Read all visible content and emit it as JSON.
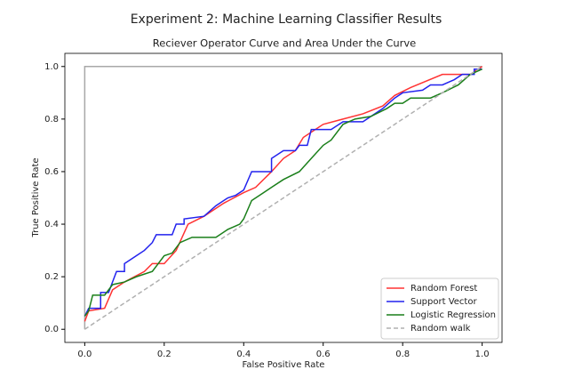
{
  "chart_data": {
    "type": "line",
    "suptitle": "Experiment 2: Machine Learning Classifier Results",
    "title": "Reciever Operator Curve and Area Under the Curve",
    "x_label": "False Positive Rate",
    "y_label": "True Positive Rate",
    "xlim": [
      -0.05,
      1.05
    ],
    "ylim": [
      -0.05,
      1.05
    ],
    "xticks": [
      {
        "value": 0,
        "label": "0.0"
      },
      0.2,
      0.4,
      0.6,
      0.8,
      {
        "value": 1,
        "label": "1.0"
      }
    ],
    "yticks": [
      {
        "value": 0,
        "label": "0.0"
      },
      0.2,
      0.4,
      0.6,
      0.8,
      {
        "value": 1,
        "label": "1.0"
      }
    ],
    "grid": false,
    "legend": "lower right",
    "series": [
      {
        "color": "#a8a8a8",
        "x": [
          0,
          0,
          1
        ],
        "values": [
          0,
          1,
          1
        ]
      },
      {
        "name": "Random Forest",
        "color": "#ff3333",
        "x": [
          0,
          0.01,
          0.05,
          0.07,
          0.1,
          0.15,
          0.17,
          0.2,
          0.23,
          0.26,
          0.3,
          0.35,
          0.4,
          0.43,
          0.47,
          0.5,
          0.53,
          0.55,
          0.6,
          0.7,
          0.75,
          0.78,
          0.82,
          0.9,
          0.97,
          0.99,
          1
        ],
        "values": [
          0.03,
          0.07,
          0.08,
          0.15,
          0.18,
          0.22,
          0.25,
          0.25,
          0.3,
          0.4,
          0.43,
          0.48,
          0.52,
          0.54,
          0.6,
          0.65,
          0.68,
          0.73,
          0.78,
          0.82,
          0.85,
          0.89,
          0.92,
          0.97,
          0.97,
          0.99,
          1
        ]
      },
      {
        "name": "Support Vector",
        "color": "#2222ee",
        "x": [
          0,
          0.01,
          0.04,
          0.04,
          0.06,
          0.07,
          0.08,
          0.1,
          0.1,
          0.13,
          0.15,
          0.17,
          0.18,
          0.22,
          0.23,
          0.25,
          0.25,
          0.3,
          0.33,
          0.36,
          0.38,
          0.4,
          0.42,
          0.47,
          0.47,
          0.5,
          0.53,
          0.54,
          0.56,
          0.57,
          0.62,
          0.65,
          0.7,
          0.72,
          0.75,
          0.78,
          0.8,
          0.85,
          0.87,
          0.9,
          0.93,
          0.95,
          0.98,
          0.98,
          1
        ],
        "values": [
          0.05,
          0.08,
          0.08,
          0.14,
          0.14,
          0.18,
          0.22,
          0.22,
          0.25,
          0.28,
          0.3,
          0.33,
          0.36,
          0.36,
          0.4,
          0.4,
          0.42,
          0.43,
          0.47,
          0.5,
          0.51,
          0.53,
          0.6,
          0.6,
          0.65,
          0.68,
          0.68,
          0.7,
          0.7,
          0.76,
          0.76,
          0.79,
          0.79,
          0.81,
          0.84,
          0.88,
          0.9,
          0.91,
          0.93,
          0.93,
          0.95,
          0.97,
          0.97,
          0.99,
          0.99
        ]
      },
      {
        "name": "Logistic Regression",
        "color": "#1a7f1a",
        "x": [
          0,
          0.01,
          0.02,
          0.05,
          0.07,
          0.1,
          0.13,
          0.17,
          0.2,
          0.22,
          0.24,
          0.27,
          0.33,
          0.36,
          0.39,
          0.4,
          0.42,
          0.45,
          0.47,
          0.5,
          0.54,
          0.57,
          0.6,
          0.62,
          0.65,
          0.68,
          0.72,
          0.76,
          0.78,
          0.8,
          0.82,
          0.87,
          0.9,
          0.94,
          0.97,
          1
        ],
        "values": [
          0.05,
          0.07,
          0.13,
          0.13,
          0.17,
          0.18,
          0.2,
          0.22,
          0.28,
          0.29,
          0.33,
          0.35,
          0.35,
          0.38,
          0.4,
          0.42,
          0.49,
          0.52,
          0.54,
          0.57,
          0.6,
          0.65,
          0.7,
          0.72,
          0.78,
          0.8,
          0.81,
          0.84,
          0.86,
          0.86,
          0.88,
          0.88,
          0.9,
          0.93,
          0.97,
          0.99
        ]
      },
      {
        "name": "Random walk",
        "color": "#b0b0b0",
        "dash": true,
        "x": [
          0,
          1
        ],
        "values": [
          0,
          1
        ]
      }
    ]
  }
}
